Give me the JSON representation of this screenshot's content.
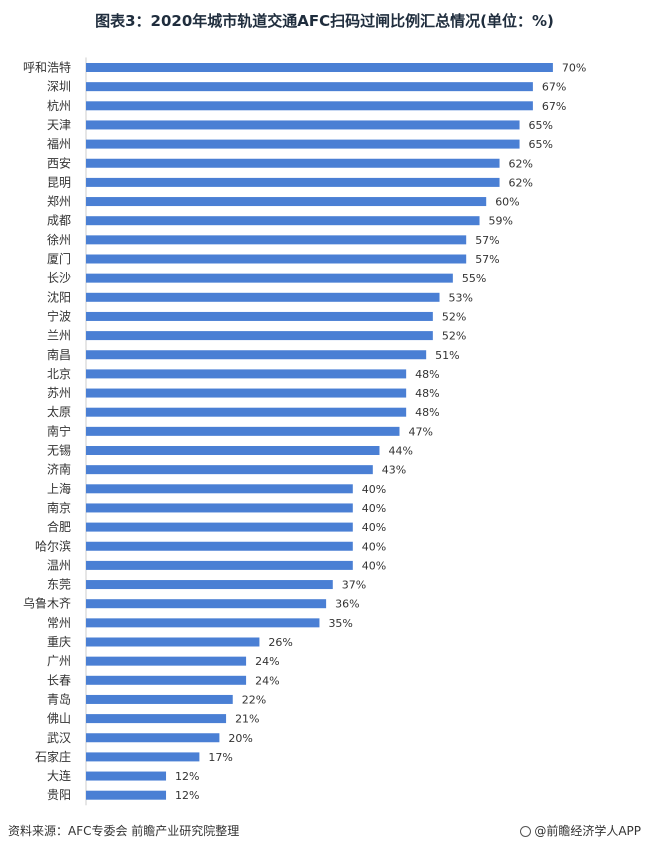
{
  "chart_data": {
    "type": "bar",
    "orientation": "horizontal",
    "title": "图表3：2020年城市轨道交通AFC扫码过闸比例汇总情况(单位：%)",
    "unit": "%",
    "categories": [
      "呼和浩特",
      "深圳",
      "杭州",
      "天津",
      "福州",
      "西安",
      "昆明",
      "郑州",
      "成都",
      "徐州",
      "厦门",
      "长沙",
      "沈阳",
      "宁波",
      "兰州",
      "南昌",
      "北京",
      "苏州",
      "太原",
      "南宁",
      "无锡",
      "济南",
      "上海",
      "南京",
      "合肥",
      "哈尔滨",
      "温州",
      "东莞",
      "乌鲁木齐",
      "常州",
      "重庆",
      "广州",
      "长春",
      "青岛",
      "佛山",
      "武汉",
      "石家庄",
      "大连",
      "贵阳"
    ],
    "values": [
      70,
      67,
      67,
      65,
      65,
      62,
      62,
      60,
      59,
      57,
      57,
      55,
      53,
      52,
      52,
      51,
      48,
      48,
      48,
      47,
      44,
      43,
      40,
      40,
      40,
      40,
      40,
      37,
      36,
      35,
      26,
      24,
      24,
      22,
      21,
      20,
      17,
      12,
      12
    ],
    "data_labels": [
      "70%",
      "67%",
      "67%",
      "65%",
      "65%",
      "62%",
      "62%",
      "60%",
      "59%",
      "57%",
      "57%",
      "55%",
      "53%",
      "52%",
      "52%",
      "51%",
      "48%",
      "48%",
      "48%",
      "47%",
      "44%",
      "43%",
      "40%",
      "40%",
      "40%",
      "40%",
      "40%",
      "37%",
      "36%",
      "35%",
      "26%",
      "24%",
      "24%",
      "22%",
      "21%",
      "20%",
      "17%",
      "12%",
      "12%"
    ],
    "bar_color": "#4a7fd4",
    "grid": false
  },
  "footer": {
    "source": "资料来源：AFC专委会 前瞻产业研究院整理",
    "brand": "@前瞻经济学人APP"
  }
}
